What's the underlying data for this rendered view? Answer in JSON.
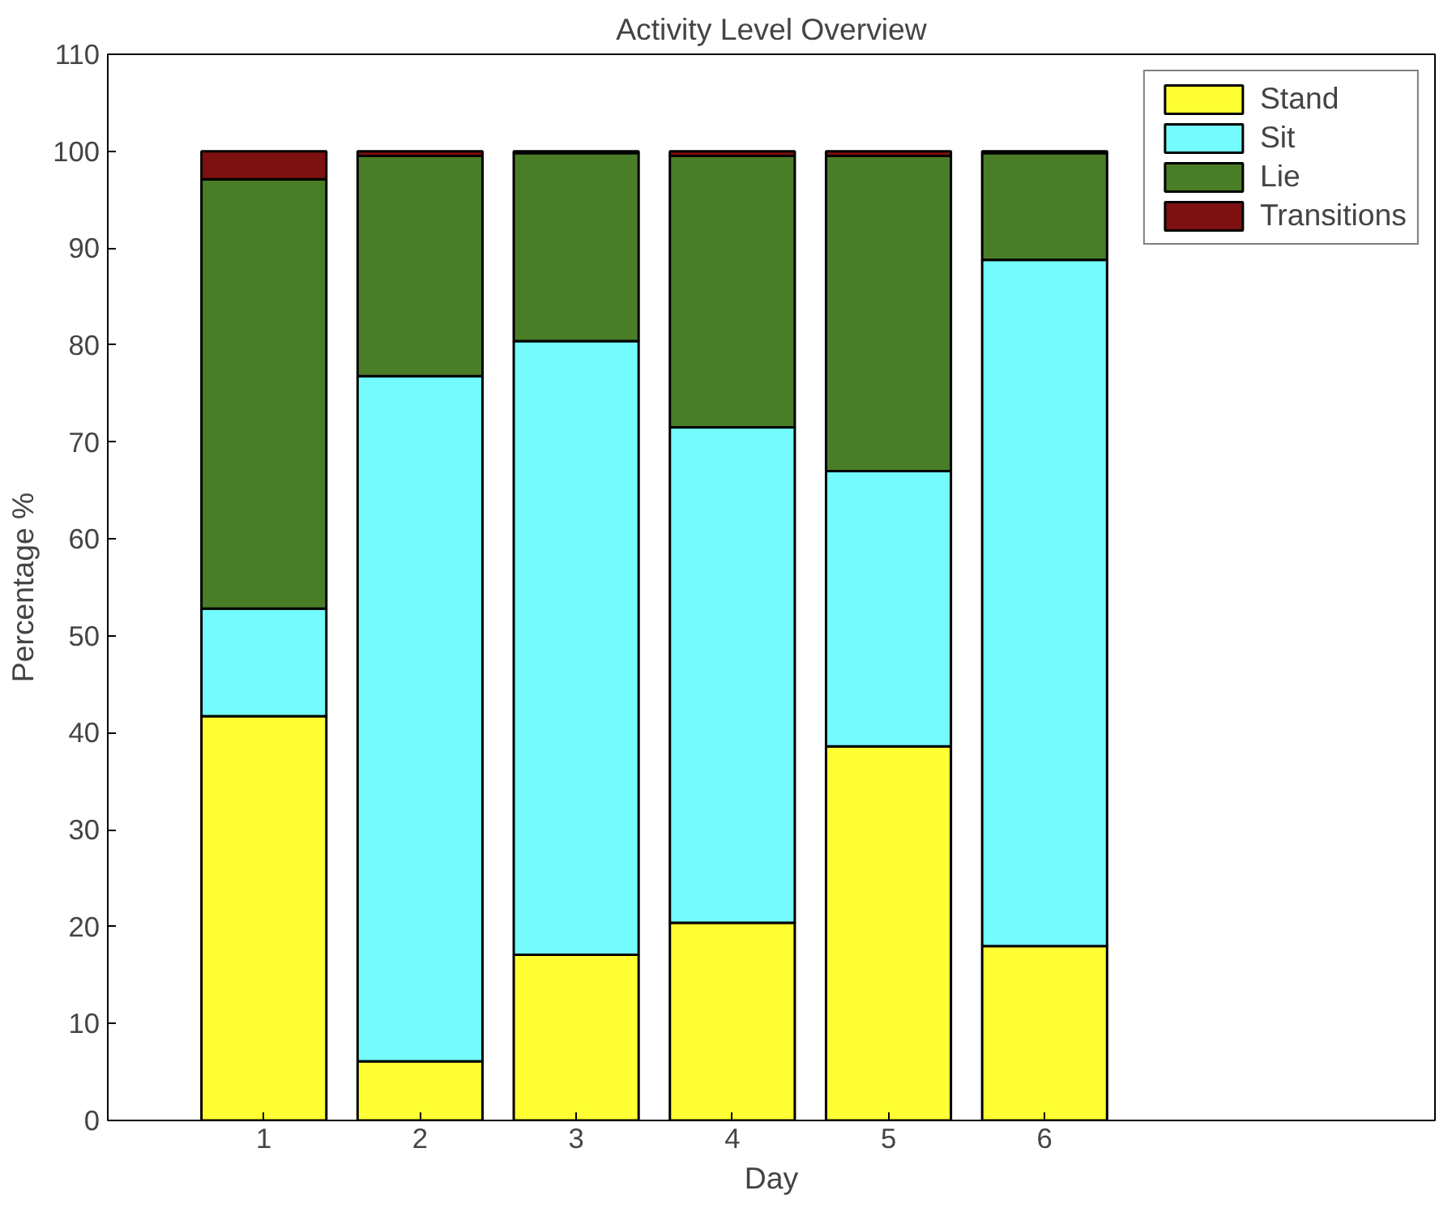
{
  "chart_data": {
    "type": "bar",
    "stacked": true,
    "title": "Activity Level Overview",
    "xlabel": "Day",
    "ylabel": "Percentage %",
    "x": [
      1,
      2,
      3,
      4,
      5,
      6
    ],
    "xlim": [
      0,
      8.5
    ],
    "xticks": [
      1,
      2,
      3,
      4,
      5,
      6
    ],
    "ylim": [
      0,
      110
    ],
    "yticks": [
      0,
      10,
      20,
      30,
      40,
      50,
      60,
      70,
      80,
      90,
      100,
      110
    ],
    "series": [
      {
        "name": "Stand",
        "color": "#ffff33",
        "values": [
          41.7,
          6.1,
          17.1,
          20.4,
          38.6,
          18.0
        ]
      },
      {
        "name": "Sit",
        "color": "#73fbfd",
        "values": [
          11.1,
          70.7,
          63.3,
          51.1,
          28.4,
          70.8
        ]
      },
      {
        "name": "Lie",
        "color": "#4a7d28",
        "values": [
          44.3,
          22.7,
          19.4,
          28.0,
          32.5,
          11.0
        ]
      },
      {
        "name": "Transitions",
        "color": "#7d1010",
        "values": [
          2.9,
          0.5,
          0.2,
          0.5,
          0.5,
          0.2
        ]
      }
    ],
    "legend": "top right",
    "grid": false
  }
}
